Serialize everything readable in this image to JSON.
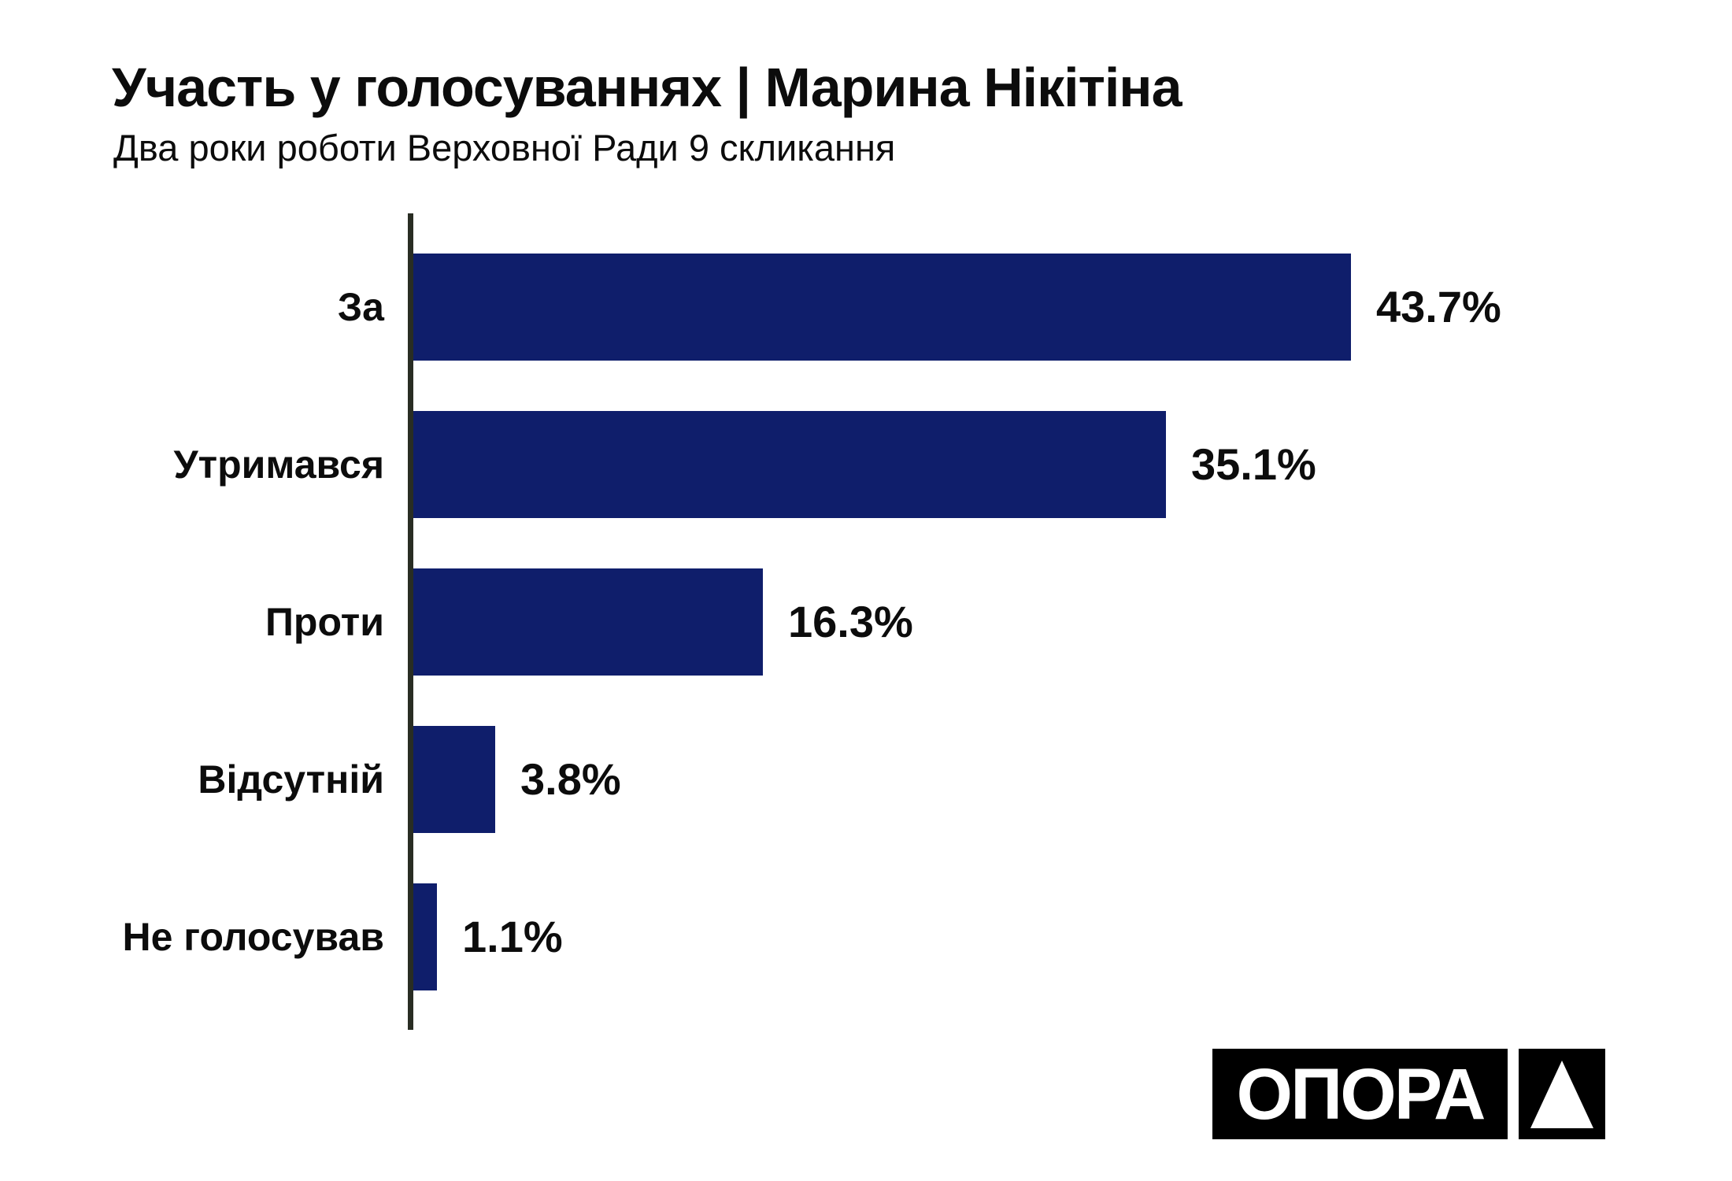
{
  "header": {
    "title": "Участь у голосуваннях | Марина Нікітіна",
    "subtitle": "Два роки роботи Верховної Ради 9 скликання"
  },
  "chart_data": {
    "type": "bar",
    "orientation": "horizontal",
    "title": "Участь у голосуваннях | Марина Нікітіна",
    "subtitle": "Два роки роботи Верховної Ради 9 скликання",
    "categories": [
      "За",
      "Утримався",
      "Проти",
      "Відсутній",
      "Не голосував"
    ],
    "values": [
      43.7,
      35.1,
      16.3,
      3.8,
      1.1
    ],
    "value_labels": [
      "43.7%",
      "35.1%",
      "16.3%",
      "3.8%",
      "1.1%"
    ],
    "xlabel": "",
    "ylabel": "",
    "xlim": [
      0,
      45.5
    ],
    "grid": false,
    "legend": false,
    "bar_color": "#0f1e6b",
    "axis_color": "#292d23",
    "label_color": "#0c0c0c"
  },
  "logo": {
    "text": "ОПОРА",
    "mark": "triangle-up",
    "background": "#000000",
    "foreground": "#ffffff"
  }
}
